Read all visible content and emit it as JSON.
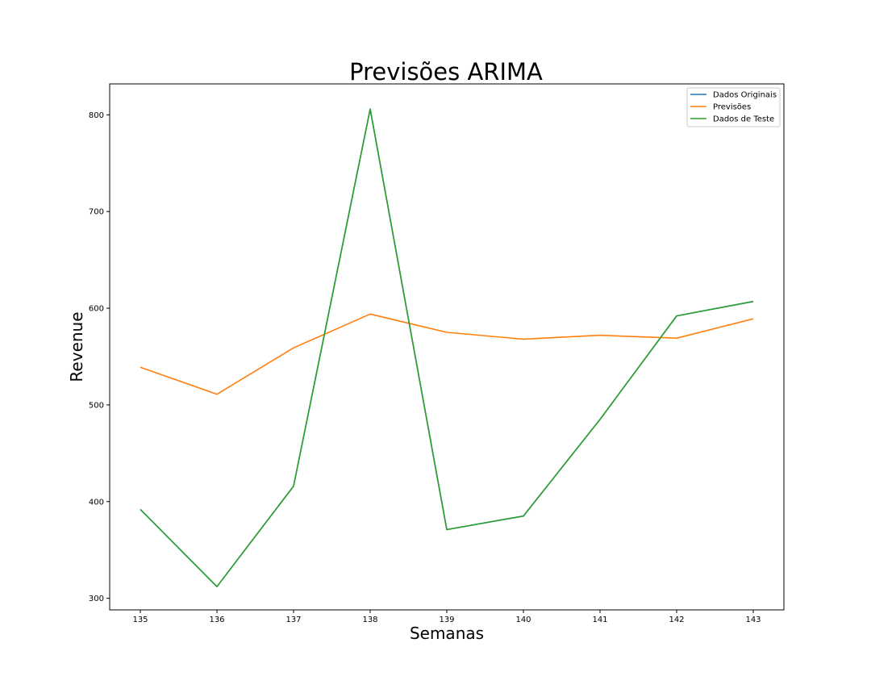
{
  "chart_data": {
    "type": "line",
    "title": "Previsões ARIMA",
    "xlabel": "Semanas",
    "ylabel": "Revenue",
    "x": [
      135,
      136,
      137,
      138,
      139,
      140,
      141,
      142,
      143
    ],
    "xlim": [
      134.6,
      143.4
    ],
    "ylim": [
      288,
      832
    ],
    "xticks": [
      135,
      136,
      137,
      138,
      139,
      140,
      141,
      142,
      143
    ],
    "yticks": [
      300,
      400,
      500,
      600,
      700,
      800
    ],
    "grid": false,
    "legend_position": "top-right",
    "series": [
      {
        "name": "Dados Originais",
        "color": "#1f77b4",
        "values": [
          392,
          312,
          416,
          806,
          371,
          385,
          485,
          592,
          607
        ]
      },
      {
        "name": "Previsões",
        "color": "#ff7f0e",
        "values": [
          539,
          511,
          559,
          594,
          575,
          568,
          572,
          569,
          589
        ]
      },
      {
        "name": "Dados de Teste",
        "color": "#2ca02c",
        "values": [
          392,
          312,
          416,
          806,
          371,
          385,
          485,
          592,
          607
        ]
      }
    ]
  }
}
